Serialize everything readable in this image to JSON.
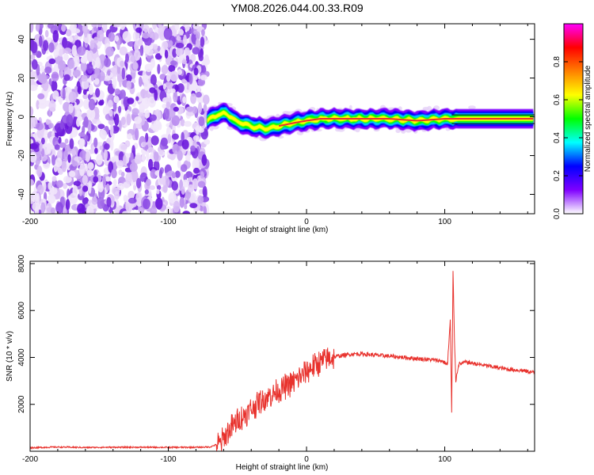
{
  "title": "YM08.2026.044.00.33.R09",
  "colors": {
    "snr_line": "#e8322d",
    "axis": "#000000",
    "band_center": "#e8322d"
  },
  "chart_data": [
    {
      "type": "heatmap",
      "name": "spectrogram",
      "xlabel": "Height of straight line (km)",
      "ylabel": "Frequency (Hz)",
      "xlim": [
        -200,
        165
      ],
      "ylim": [
        -50,
        48
      ],
      "x_ticks": [
        "-200",
        "-100",
        "0",
        "100"
      ],
      "x_tick_values": [
        -200,
        -100,
        0,
        100
      ],
      "y_ticks": [
        "-40",
        "-20",
        "0",
        "20",
        "40"
      ],
      "y_tick_values": [
        -40,
        -20,
        0,
        20,
        40
      ],
      "noise_region_x": [
        -200,
        -72
      ],
      "signal_region_x": [
        -72,
        165
      ],
      "signal_center_hz": [
        [
          -72,
          -2
        ],
        [
          -65,
          1
        ],
        [
          -58,
          2
        ],
        [
          -52,
          -2
        ],
        [
          -45,
          -4
        ],
        [
          -38,
          -5
        ],
        [
          -30,
          -6
        ],
        [
          -22,
          -5
        ],
        [
          -15,
          -4
        ],
        [
          -8,
          -3
        ],
        [
          0,
          -2
        ],
        [
          10,
          -1
        ],
        [
          20,
          -1
        ],
        [
          40,
          -1
        ],
        [
          60,
          -1
        ],
        [
          80,
          -2
        ],
        [
          100,
          -1
        ],
        [
          120,
          -1
        ],
        [
          165,
          -1
        ]
      ],
      "colorbar": {
        "label": "Normalized spectral amplitude",
        "ticks": [
          "0.0",
          "0.2",
          "0.4",
          "0.6",
          "0.8"
        ],
        "tick_values": [
          0.0,
          0.2,
          0.4,
          0.6,
          0.8
        ],
        "range": [
          0,
          1
        ],
        "colormap": [
          "#ffffff",
          "#7f00ff",
          "#0000ff",
          "#00ffff",
          "#00ff00",
          "#ffff00",
          "#ff8000",
          "#ff0000",
          "#ff00ff"
        ]
      }
    },
    {
      "type": "line",
      "name": "snr",
      "xlabel": "Height of straight line (km)",
      "ylabel": "SNR (10 * v/v)",
      "xlim": [
        -200,
        165
      ],
      "ylim": [
        0,
        8100
      ],
      "x_ticks": [
        "-200",
        "-100",
        "0",
        "100"
      ],
      "x_tick_values": [
        -200,
        -100,
        0,
        100
      ],
      "y_ticks": [
        "2000",
        "4000",
        "6000",
        "8000"
      ],
      "y_tick_values": [
        2000,
        4000,
        6000,
        8000
      ],
      "series": [
        {
          "name": "SNR",
          "x": [
            -200,
            -180,
            -160,
            -140,
            -120,
            -100,
            -80,
            -70,
            -62,
            -56,
            -50,
            -44,
            -38,
            -32,
            -26,
            -20,
            -14,
            -8,
            -2,
            4,
            10,
            16,
            22,
            28,
            34,
            40,
            50,
            60,
            70,
            80,
            90,
            98,
            102,
            104,
            105,
            106,
            107,
            108,
            110,
            115,
            125,
            135,
            145,
            155,
            165
          ],
          "y": [
            150,
            180,
            160,
            170,
            170,
            165,
            170,
            180,
            350,
            900,
            1300,
            1600,
            1900,
            2200,
            2400,
            2600,
            2800,
            3000,
            3300,
            3600,
            3800,
            3950,
            4050,
            4100,
            4150,
            4150,
            4100,
            4050,
            4000,
            3950,
            3900,
            3850,
            3700,
            5600,
            1600,
            7700,
            4800,
            3000,
            3700,
            3800,
            3700,
            3600,
            3500,
            3450,
            3350
          ],
          "spike_peak": {
            "x": 106,
            "y": 7700
          }
        }
      ]
    }
  ]
}
